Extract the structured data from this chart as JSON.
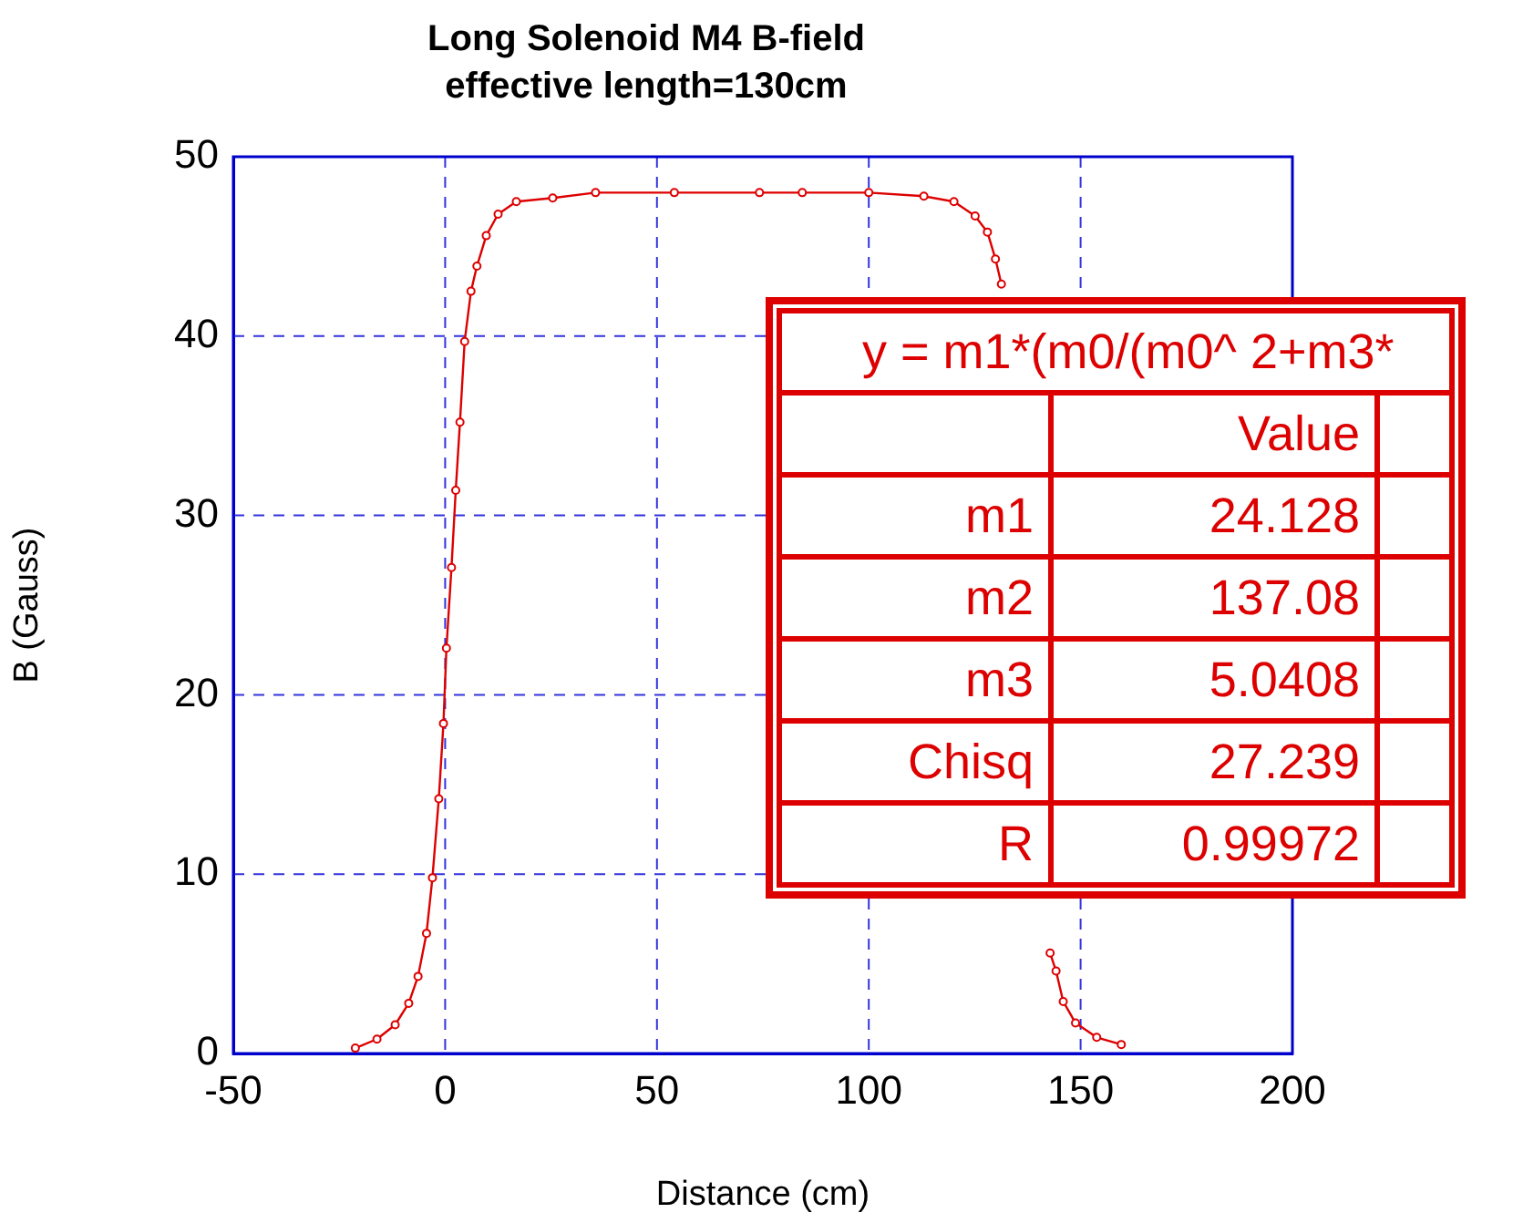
{
  "chart_data": {
    "type": "line",
    "title": "Long Solenoid M4 B-field",
    "subtitle": "effective length=130cm",
    "xlabel": "Distance (cm)",
    "ylabel": "B (Gauss)",
    "x": [
      -21.2,
      -16.1,
      -11.8,
      -8.6,
      -6.4,
      -4.4,
      -3.0,
      -1.5,
      -0.4,
      0.3,
      1.5,
      2.5,
      3.5,
      4.6,
      6.1,
      7.5,
      9.7,
      12.5,
      16.8,
      25.4,
      35.5,
      54.1,
      74.2,
      84.3,
      100.0,
      113.0,
      120.1,
      125.1,
      128.0,
      129.9,
      131.3,
      134,
      137,
      140,
      142.8,
      144.2,
      145.9,
      148.8,
      153.8,
      159.6
    ],
    "series": [
      {
        "color": "#dd0000",
        "values": [
          0.3,
          0.8,
          1.6,
          2.8,
          4.3,
          6.7,
          9.8,
          14.2,
          18.4,
          22.6,
          27.1,
          31.4,
          35.2,
          39.7,
          42.5,
          43.9,
          45.6,
          46.8,
          47.5,
          47.7,
          48.0,
          48.0,
          48.0,
          48.0,
          48.0,
          47.8,
          47.5,
          46.7,
          45.8,
          44.3,
          42.9,
          null,
          null,
          null,
          5.6,
          4.6,
          2.9,
          1.7,
          0.9,
          0.5
        ]
      }
    ],
    "xlim": [
      -50,
      200
    ],
    "xticks": [
      -50,
      0,
      50,
      100,
      150,
      200
    ],
    "ylim": [
      0,
      50
    ],
    "yticks": [
      0,
      10,
      20,
      30,
      40,
      50
    ],
    "grid": true,
    "legend": false,
    "marker": "circle",
    "line_style": "solid",
    "annotations": [
      "y = m1*(m0/(m0^ 2+m3*",
      "Value",
      "m1",
      "24.128",
      "m2",
      "137.08",
      "m3",
      "5.0408",
      "Chisq",
      "27.239",
      "R",
      "0.99972"
    ]
  }
}
